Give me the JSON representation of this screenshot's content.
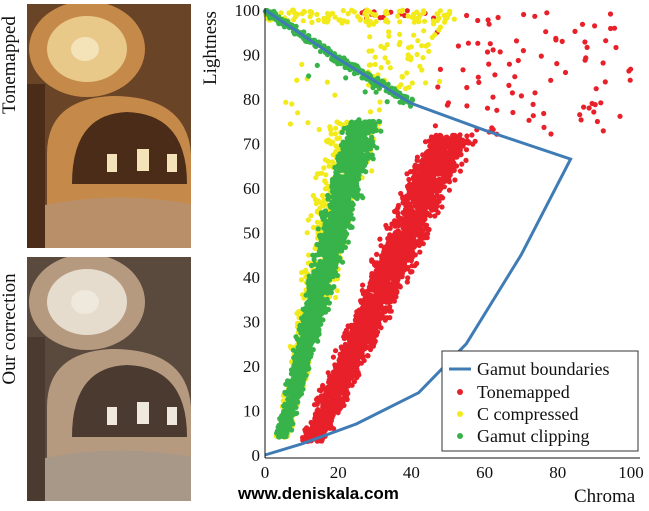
{
  "photos": {
    "top_label": "Tonemapped",
    "bottom_label": "Our correction",
    "top_colors": {
      "dome": "#e8c98a",
      "arch": "#c58a4a",
      "dark": "#4a2c18",
      "floor": "#b98f6a",
      "window": "#f4e2b8"
    },
    "bottom_colors": {
      "dome": "#e6dccd",
      "arch": "#b69a80",
      "dark": "#4a3a30",
      "floor": "#a89888",
      "window": "#efe8dc"
    }
  },
  "website": "www.deniskala.com",
  "chart_data": {
    "type": "scatter",
    "title": "",
    "xlabel": "Chroma",
    "ylabel": "Lightness",
    "xlim": [
      0,
      100
    ],
    "ylim": [
      0,
      100
    ],
    "xticks": [
      "0",
      "20",
      "40",
      "60",
      "80",
      "100"
    ],
    "yticks": [
      "0",
      "10",
      "20",
      "30",
      "40",
      "50",
      "60",
      "70",
      "80",
      "90",
      "100"
    ],
    "grid": false,
    "legend_position": "bottom-right",
    "boundary": {
      "name": "Gamut boundaries",
      "color": "#3f7cb6",
      "points": [
        [
          0,
          100
        ],
        [
          20,
          89
        ],
        [
          40,
          79
        ],
        [
          60,
          73
        ],
        [
          83.5,
          66.5
        ],
        [
          70,
          45
        ],
        [
          55,
          25
        ],
        [
          42,
          14
        ],
        [
          25,
          7
        ],
        [
          10,
          2.5
        ],
        [
          0,
          0
        ]
      ]
    },
    "series": [
      {
        "name": "Tonemapped",
        "color": "#e8202a",
        "clusters": [
          {
            "kind": "band",
            "y0": 3,
            "y1": 72,
            "x0a": 8,
            "x0b": 18,
            "x1a": 42,
            "x1b": 60,
            "count": 2600
          },
          {
            "kind": "box",
            "xmin": 45,
            "xmax": 100,
            "ymin": 72,
            "ymax": 100,
            "count": 90
          },
          {
            "kind": "box",
            "xmin": 25,
            "xmax": 45,
            "ymin": 98,
            "ymax": 100,
            "count": 15
          }
        ]
      },
      {
        "name": "C compressed",
        "color": "#f2ea1a",
        "clusters": [
          {
            "kind": "band",
            "y0": 4,
            "y1": 75,
            "x0a": 2,
            "x0b": 8,
            "x1a": 14,
            "x1b": 35,
            "count": 700
          },
          {
            "kind": "box",
            "xmin": 0,
            "xmax": 52,
            "ymin": 97,
            "ymax": 100,
            "count": 110
          },
          {
            "kind": "box",
            "xmin": 28,
            "xmax": 48,
            "ymin": 82,
            "ymax": 97,
            "count": 60
          },
          {
            "kind": "box",
            "xmin": 5,
            "xmax": 35,
            "ymin": 72,
            "ymax": 90,
            "count": 20
          }
        ]
      },
      {
        "name": "Gamut clipping",
        "color": "#37b34a",
        "clusters": [
          {
            "kind": "band",
            "y0": 4,
            "y1": 75,
            "x0a": 2,
            "x0b": 7,
            "x1a": 20,
            "x1b": 34,
            "count": 2200
          },
          {
            "kind": "line",
            "points": [
              [
                0,
                100
              ],
              [
                20,
                89
              ],
              [
                40,
                79
              ]
            ],
            "jitter": 0.8,
            "count": 260
          },
          {
            "kind": "box",
            "xmin": 8,
            "xmax": 40,
            "ymin": 75,
            "ymax": 92,
            "count": 15
          }
        ]
      }
    ]
  }
}
